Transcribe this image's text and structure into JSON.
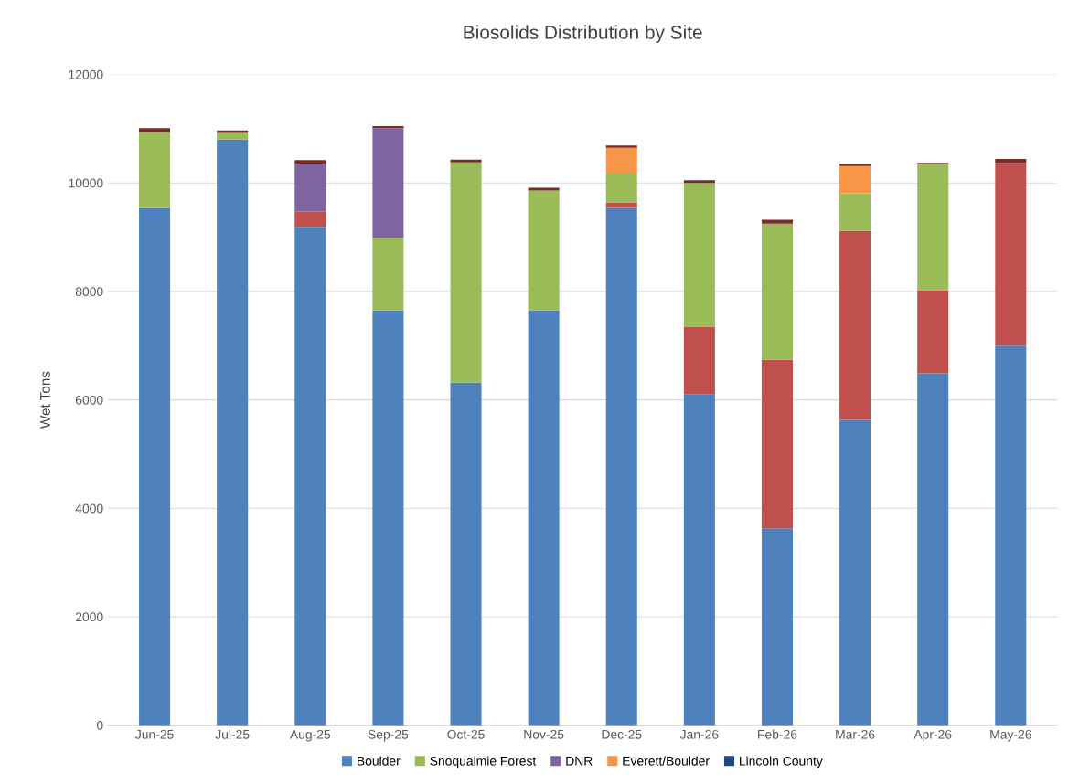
{
  "chart_data": {
    "type": "bar",
    "title": "Biosolids Distribution by Site",
    "ylabel": "Wet Tons",
    "stacked": true,
    "categories": [
      "Jun-25",
      "Jul-25",
      "Aug-25",
      "Sep-25",
      "Oct-25",
      "Nov-25",
      "Dec-25",
      "Jan-26",
      "Feb-26",
      "Mar-26",
      "Apr-26",
      "May-26"
    ],
    "series": [
      {
        "name": "Boulder",
        "color": "#4f81bd",
        "values": [
          9540,
          10800,
          9190,
          7650,
          6320,
          7650,
          9540,
          6100,
          3630,
          5630,
          6490,
          7000
        ]
      },
      {
        "color": "#c0504d",
        "values": [
          0,
          0,
          280,
          0,
          0,
          0,
          100,
          1250,
          3110,
          3490,
          1535,
          3370
        ]
      },
      {
        "name": "Snoqualmie Forest",
        "color": "#9bbb59",
        "values": [
          1400,
          120,
          0,
          1340,
          4060,
          2210,
          550,
          2650,
          2510,
          690,
          2330,
          0
        ]
      },
      {
        "name": "DNR",
        "color": "#8064a2",
        "values": [
          0,
          0,
          880,
          2020,
          0,
          0,
          0,
          0,
          0,
          0,
          0,
          0
        ]
      },
      {
        "name": "Everett/Boulder",
        "color": "#f79646",
        "values": [
          0,
          0,
          0,
          0,
          0,
          0,
          460,
          0,
          0,
          500,
          0,
          0
        ]
      },
      {
        "name": "Lincoln County",
        "color": "#1f497d",
        "values": [
          0,
          0,
          0,
          0,
          0,
          0,
          0,
          0,
          0,
          0,
          0,
          0
        ]
      },
      {
        "color": "#772c2a",
        "values": [
          70,
          50,
          70,
          40,
          50,
          50,
          40,
          50,
          70,
          40,
          15,
          70
        ]
      }
    ],
    "ylim": [
      0,
      12000
    ],
    "yticks": [
      0,
      2000,
      4000,
      6000,
      8000,
      10000,
      12000
    ],
    "grid": "y",
    "legend": "bottom"
  }
}
